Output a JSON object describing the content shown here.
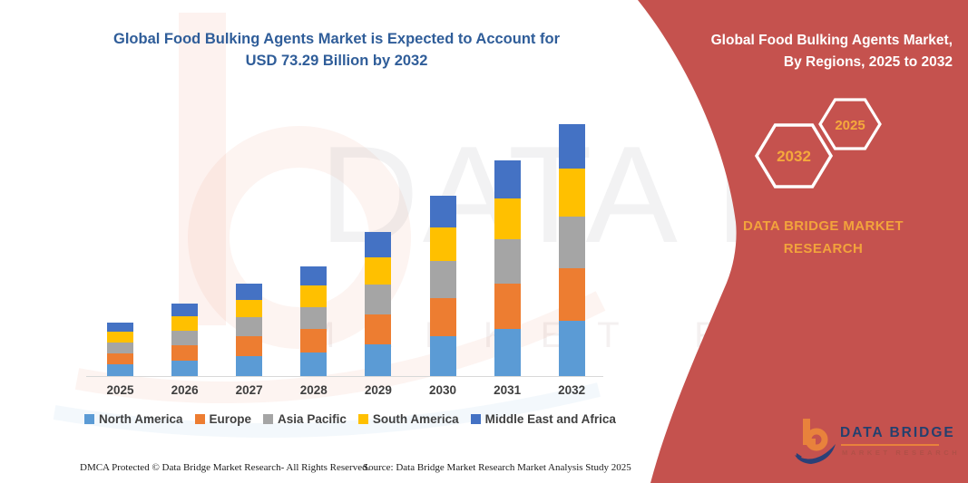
{
  "title": {
    "line1": "Global Food Bulking Agents Market is Expected to Account for",
    "line2": "USD 73.29 Billion by 2032"
  },
  "sidebar": {
    "heading_line1": "Global Food Bulking Agents Market,",
    "heading_line2": "By Regions, 2025 to 2032",
    "hexagon_back_label": "2032",
    "hexagon_front_label": "2025",
    "brand_line1": "DATA BRIDGE MARKET",
    "brand_line2": "RESEARCH",
    "background_color": "#C5524E",
    "accent_text_color": "#F2A33C"
  },
  "watermark": {
    "text": "DATA BRIDGE",
    "subtext": "MARKET RESEARCH"
  },
  "logo": {
    "name_text": "DATA BRIDGE",
    "sub_text": "MARKET RESEARCH"
  },
  "footer": {
    "dmca": "DMCA Protected © Data Bridge Market Research-  All Rights Reserved.",
    "source": "Source: Data Bridge Market Research  Market Analysis Study 2025"
  },
  "chart_data": {
    "type": "bar",
    "stacked": true,
    "title": "Global Food Bulking Agents Market is Expected to Account for USD 73.29 Billion by 2032",
    "unit": "USD Billion",
    "categories": [
      "2025",
      "2026",
      "2027",
      "2028",
      "2029",
      "2030",
      "2031",
      "2032"
    ],
    "series": [
      {
        "name": "North America",
        "color": "#5B9BD5",
        "values": [
          3.4,
          4.6,
          5.9,
          7.0,
          9.2,
          11.6,
          13.8,
          16.1
        ]
      },
      {
        "name": "Europe",
        "color": "#ED7D31",
        "values": [
          3.3,
          4.4,
          5.7,
          6.7,
          8.8,
          11.0,
          13.2,
          15.4
        ]
      },
      {
        "name": "Asia Pacific",
        "color": "#A5A5A5",
        "values": [
          3.2,
          4.3,
          5.5,
          6.5,
          8.6,
          10.8,
          12.9,
          15.0
        ]
      },
      {
        "name": "South America",
        "color": "#FFC000",
        "values": [
          3.0,
          4.0,
          5.1,
          6.1,
          8.0,
          10.0,
          11.9,
          13.9
        ]
      },
      {
        "name": "Middle East and Africa",
        "color": "#4472C4",
        "values": [
          2.7,
          3.8,
          4.7,
          5.6,
          7.3,
          9.1,
          11.0,
          12.89
        ]
      }
    ],
    "totals_estimated": [
      15.6,
      21.1,
      26.9,
      31.9,
      41.9,
      52.5,
      62.8,
      73.29
    ],
    "ylim": [
      0,
      78
    ],
    "grid": false,
    "y_axis_visible": false,
    "legend_position": "bottom",
    "xlabel": "",
    "ylabel": ""
  }
}
